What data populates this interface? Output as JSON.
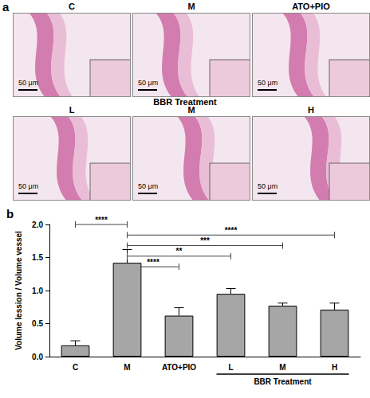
{
  "chart_data": {
    "type": "bar",
    "title": "b",
    "y_label": "Volume lession / Volume vessel",
    "categories": [
      "C",
      "M",
      "ATO+PIO",
      "L",
      "M",
      "H"
    ],
    "values": [
      0.17,
      1.42,
      0.62,
      0.95,
      0.77,
      0.71
    ],
    "errors": [
      0.07,
      0.2,
      0.12,
      0.08,
      0.04,
      0.1
    ],
    "color": "#a6a6a6",
    "ylim": [
      0,
      2.0
    ],
    "yticks": [
      {
        "value": 0,
        "label": "0.0"
      },
      {
        "value": 0.5,
        "label": "0.5"
      },
      {
        "value": 1.0,
        "label": "1.0"
      },
      {
        "value": 1.5,
        "label": "1.5"
      },
      {
        "value": 2.0,
        "label": "2.0"
      }
    ],
    "grid": false,
    "comparisons": [
      {
        "from": 0,
        "to": 1,
        "text": "****"
      },
      {
        "from": 1,
        "to": 2,
        "text": "****"
      },
      {
        "from": 1,
        "to": 3,
        "text": "**"
      },
      {
        "from": 1,
        "to": 4,
        "text": "***"
      },
      {
        "from": 1,
        "to": 5,
        "text": "****"
      }
    ],
    "group_labels": [
      {
        "text": "BBR Treatment",
        "from": 3,
        "to": 5
      }
    ]
  },
  "image_panels": {
    "label": "a",
    "scale_bar": "50 μm",
    "row_group": "BBR Treatment",
    "rows": [
      [
        "C",
        "M",
        "ATO+PIO"
      ],
      [
        "L",
        "M",
        "H"
      ]
    ]
  }
}
